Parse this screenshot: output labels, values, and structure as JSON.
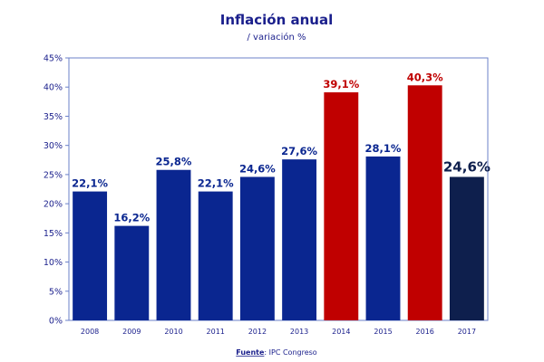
{
  "chart_data": {
    "type": "bar",
    "title": "Inflación anual",
    "subtitle": "/ variación  %",
    "categories": [
      "2008",
      "2009",
      "2010",
      "2011",
      "2012",
      "2013",
      "2014",
      "2015",
      "2016",
      "2017"
    ],
    "values": [
      22.1,
      16.2,
      25.8,
      22.1,
      24.6,
      27.6,
      39.1,
      28.1,
      40.3,
      24.6
    ],
    "data_labels": [
      "22,1%",
      "16,2%",
      "25,8%",
      "22,1%",
      "24,6%",
      "27,6%",
      "39,1%",
      "28,1%",
      "40,3%",
      "24,6%"
    ],
    "bar_colors": [
      "#0a2690",
      "#0a2690",
      "#0a2690",
      "#0a2690",
      "#0a2690",
      "#0a2690",
      "#c00000",
      "#0a2690",
      "#c00000",
      "#0e1f4d"
    ],
    "label_colors": [
      "#0a2690",
      "#0a2690",
      "#0a2690",
      "#0a2690",
      "#0a2690",
      "#0a2690",
      "#c00000",
      "#0a2690",
      "#c00000",
      "#0e1f4d"
    ],
    "yticks": [
      "0%",
      "5%",
      "10%",
      "15%",
      "20%",
      "25%",
      "30%",
      "35%",
      "40%",
      "45%"
    ],
    "ylim": [
      0,
      45
    ],
    "xlabel": "",
    "ylabel": "",
    "grid": false,
    "legend": "none",
    "source_label": "Fuente",
    "source_text": ": IPC Congreso"
  }
}
